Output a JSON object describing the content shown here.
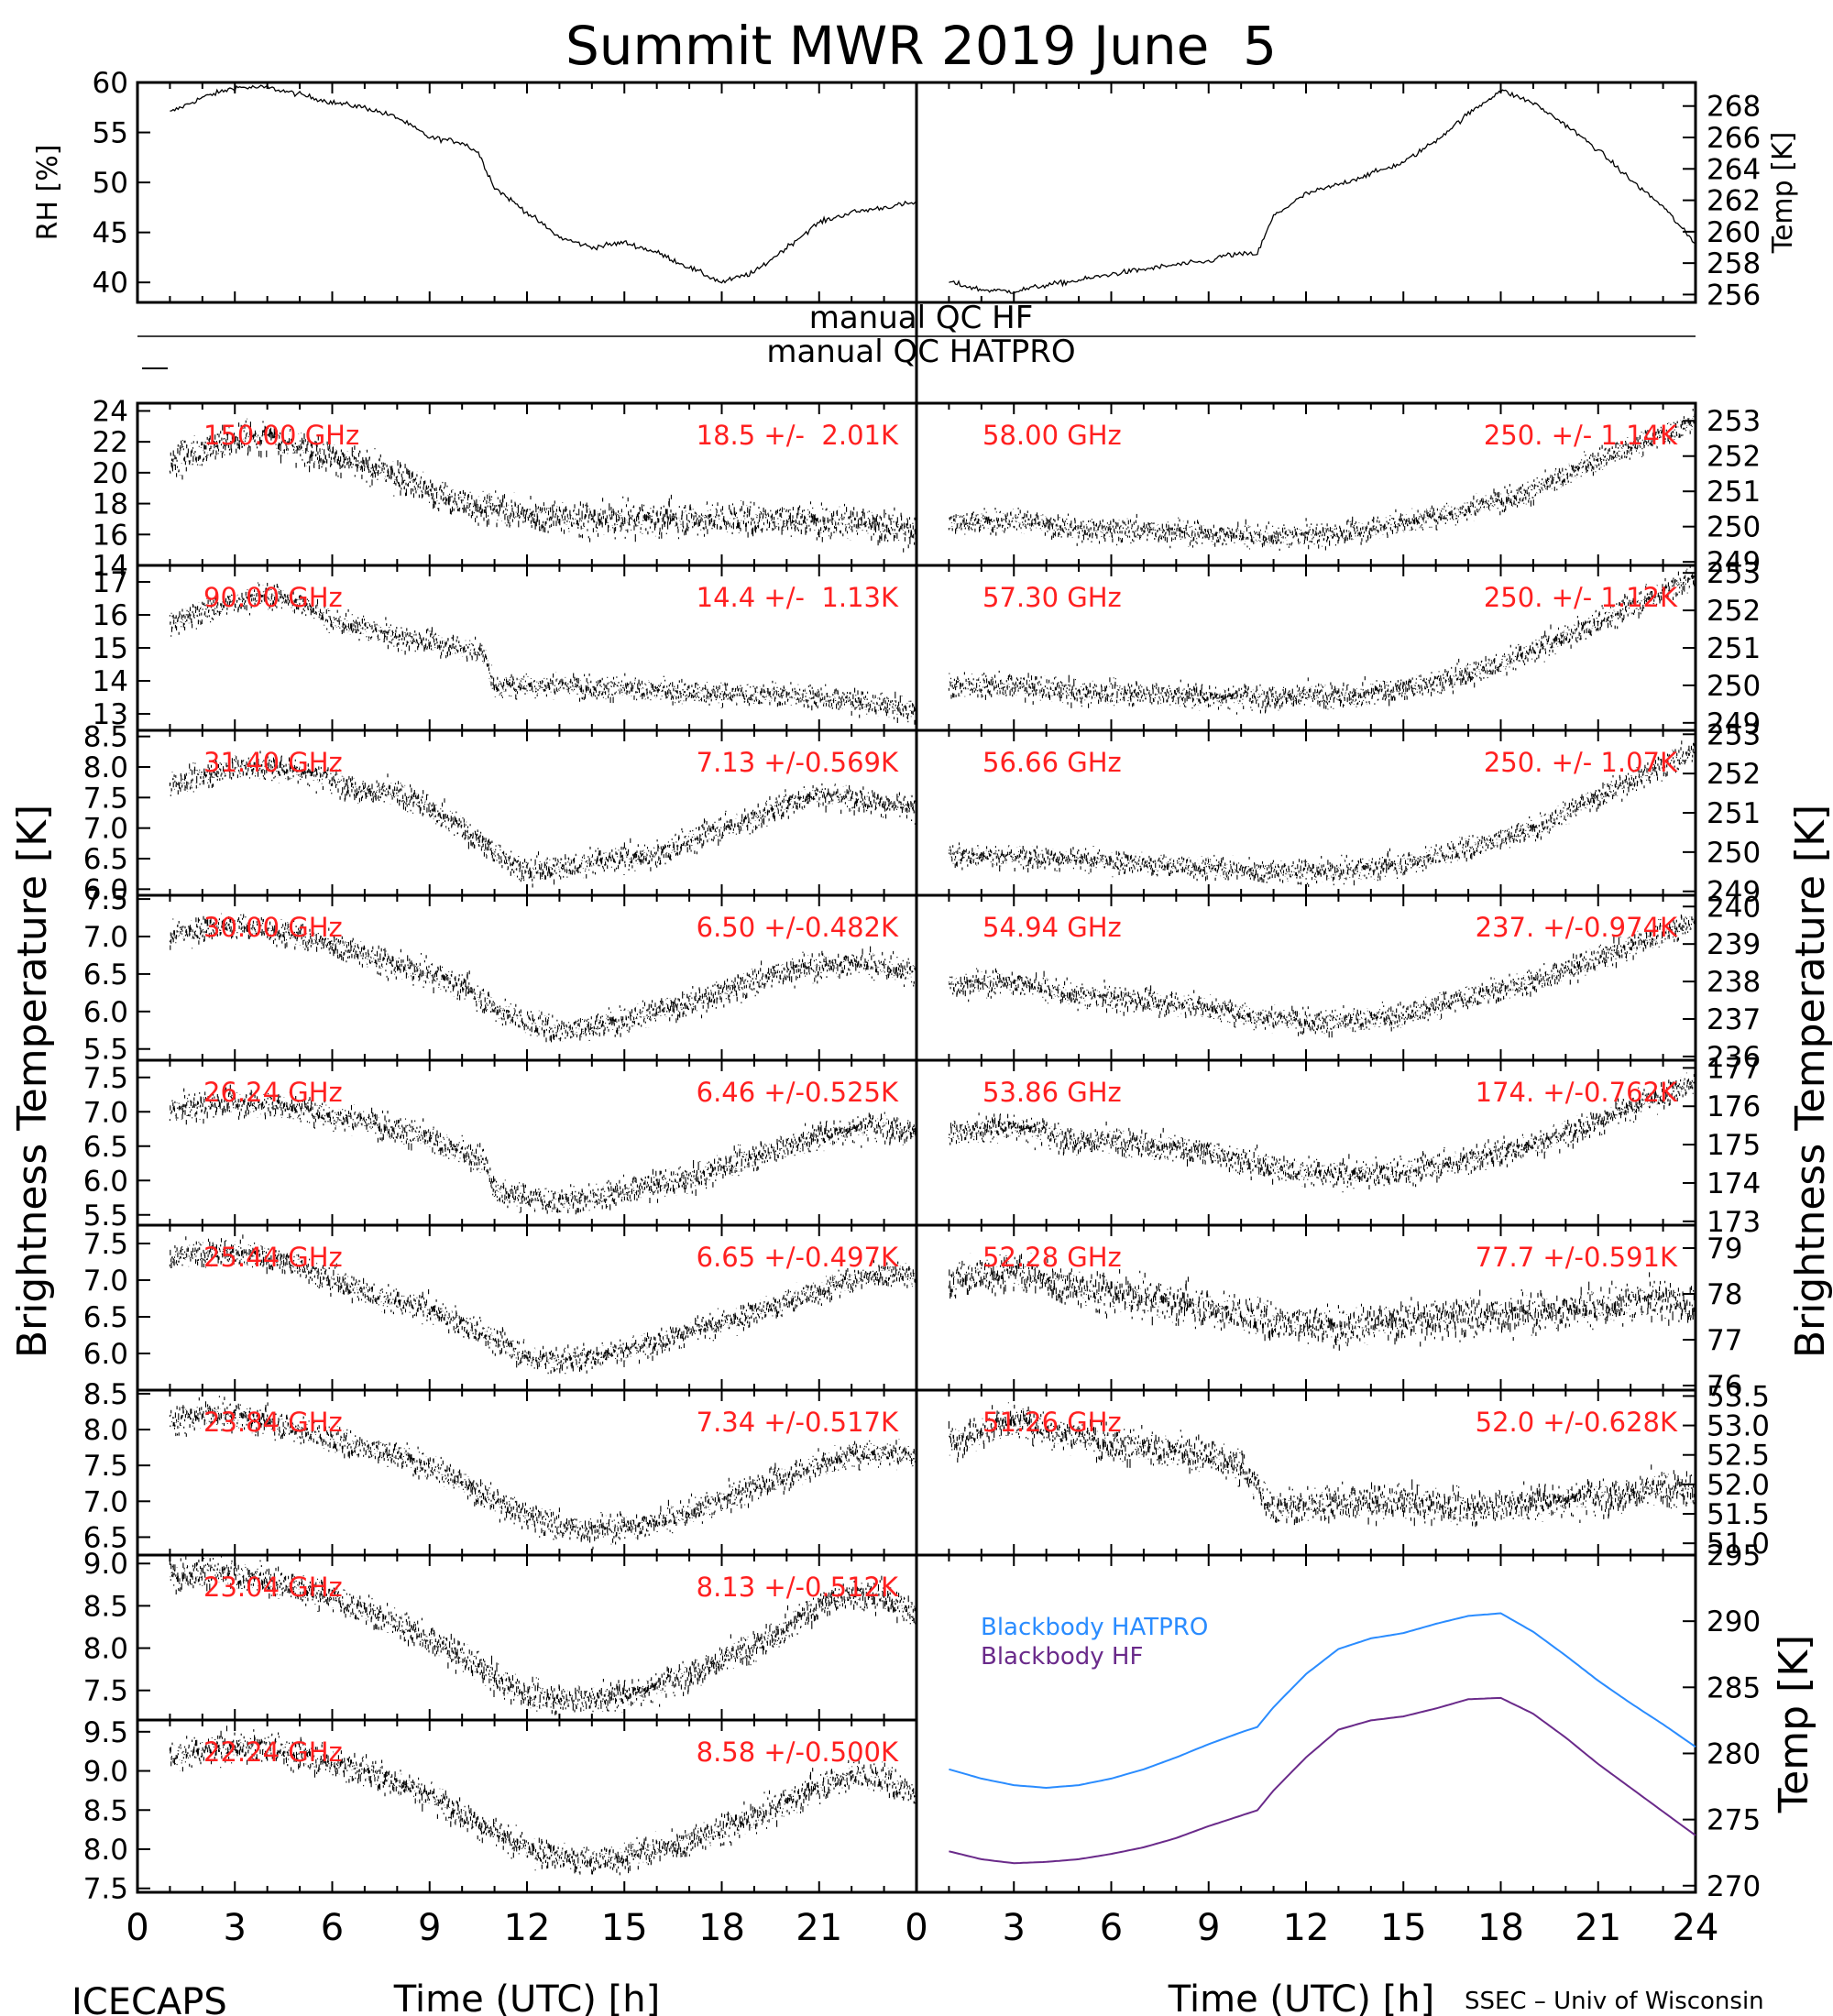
{
  "figure": {
    "title": "Summit MWR 2019 June  5",
    "footer_left": "ICECAPS",
    "footer_right": "SSEC – Univ of Wisconsin",
    "xlabel_left": "Time (UTC) [h]",
    "xlabel_right": "Time (UTC) [h]",
    "ylabel_left": "Brightness Temperature [K]",
    "ylabel_right": "Brightness Temperature [K]",
    "qc_label_hf": "manual QC HF",
    "qc_label_hatpro": "manual QC HATPRO",
    "colors": {
      "trace": "#000000",
      "annotation": "#ff2020",
      "hatpro": "#2a8cff",
      "hf": "#6a2a8a"
    }
  },
  "chart_data": [
    {
      "id": "rh",
      "type": "line",
      "ylabel": "RH [%]",
      "ylim": [
        38,
        60
      ],
      "yticks": [
        40,
        45,
        50,
        55,
        60
      ],
      "x": [
        1,
        2,
        3,
        4,
        5,
        6,
        7,
        8,
        9,
        10,
        10.5,
        11,
        12,
        13,
        14,
        15,
        16,
        17,
        18,
        19,
        20,
        21,
        22,
        23,
        24
      ],
      "y": [
        57,
        58.5,
        59.5,
        59.5,
        58.8,
        58,
        57.5,
        56.5,
        54.5,
        54,
        53,
        49.5,
        47,
        44.5,
        43.5,
        44,
        43,
        41.5,
        40,
        41,
        43.5,
        46,
        47,
        47.5,
        48
      ]
    },
    {
      "id": "temp",
      "type": "line",
      "ylabel": "Temp [K]",
      "ylim": [
        255.5,
        269.5
      ],
      "yticks": [
        256,
        258,
        260,
        262,
        264,
        266,
        268
      ],
      "x": [
        1,
        2,
        3,
        4,
        5,
        6,
        7,
        8,
        9,
        9.5,
        10.5,
        11,
        12,
        13,
        14,
        15,
        16,
        17,
        18,
        19,
        20,
        21,
        22,
        23,
        24
      ],
      "y": [
        256.8,
        256.3,
        256.2,
        256.6,
        256.9,
        257.3,
        257.6,
        257.9,
        258.1,
        258.5,
        258.6,
        261,
        262.4,
        263,
        263.7,
        264.4,
        265.8,
        267.5,
        269,
        268.2,
        266.8,
        265.2,
        263.3,
        261.6,
        259.2
      ]
    },
    {
      "id": "tb_150",
      "type": "line",
      "ylim": [
        14,
        24.5
      ],
      "yticks": [
        14,
        16,
        18,
        20,
        22,
        24
      ],
      "label": "150.00 GHz",
      "stat": "18.5 +/-  2.01K",
      "noise": 0.9,
      "x": [
        1,
        3,
        4,
        6,
        8,
        9,
        10,
        12,
        14,
        16,
        18,
        20,
        22,
        24
      ],
      "y": [
        20.8,
        22.2,
        22.3,
        21,
        19.8,
        18.8,
        18,
        17.3,
        16.9,
        17,
        17,
        17,
        16.8,
        16.2
      ]
    },
    {
      "id": "tb_90",
      "type": "line",
      "ylim": [
        12.5,
        17.5
      ],
      "yticks": [
        13,
        14,
        15,
        16,
        17
      ],
      "label": "90.00 GHz",
      "stat": "14.4 +/-  1.13K",
      "noise": 0.3,
      "x": [
        1,
        2,
        3,
        4,
        5,
        6,
        7,
        8,
        9,
        10,
        10.7,
        11,
        12,
        14,
        16,
        18,
        20,
        22,
        24
      ],
      "y": [
        15.7,
        16.1,
        16.4,
        16.6,
        16.4,
        15.8,
        15.6,
        15.3,
        15.2,
        15,
        14.8,
        13.8,
        13.9,
        13.8,
        13.7,
        13.6,
        13.6,
        13.4,
        13.1
      ]
    },
    {
      "id": "tb_31",
      "type": "line",
      "ylim": [
        5.9,
        8.6
      ],
      "yticks": [
        6.0,
        6.5,
        7.0,
        7.5,
        8.0,
        8.5
      ],
      "label": "31.40 GHz",
      "stat": "7.13 +/-0.569K",
      "noise": 0.18,
      "x": [
        1,
        2,
        3,
        4,
        5,
        6,
        7,
        8,
        9,
        10,
        11,
        12,
        13,
        14,
        15,
        16,
        17,
        18,
        19,
        20,
        21,
        22,
        23,
        24
      ],
      "y": [
        7.7,
        7.85,
        8,
        8.0,
        7.95,
        7.8,
        7.6,
        7.55,
        7.35,
        7.0,
        6.6,
        6.3,
        6.35,
        6.45,
        6.5,
        6.55,
        6.8,
        7.0,
        7.15,
        7.4,
        7.55,
        7.5,
        7.4,
        7.3
      ]
    },
    {
      "id": "tb_30",
      "type": "line",
      "ylim": [
        5.35,
        7.55
      ],
      "yticks": [
        5.5,
        6.0,
        6.5,
        7.0,
        7.5
      ],
      "label": "30.00 GHz",
      "stat": "6.50 +/-0.482K",
      "noise": 0.15,
      "x": [
        1,
        2,
        3,
        4,
        5,
        6,
        7,
        8,
        9,
        10,
        11,
        12,
        13,
        14,
        15,
        16,
        17,
        18,
        19,
        20,
        21,
        22,
        23,
        24
      ],
      "y": [
        7.0,
        7.1,
        7.15,
        7.1,
        7.0,
        6.9,
        6.75,
        6.6,
        6.5,
        6.35,
        6.05,
        5.85,
        5.75,
        5.8,
        5.9,
        6.0,
        6.1,
        6.25,
        6.4,
        6.55,
        6.6,
        6.65,
        6.6,
        6.5
      ]
    },
    {
      "id": "tb_26",
      "type": "line",
      "ylim": [
        5.35,
        7.75
      ],
      "yticks": [
        5.5,
        6.0,
        6.5,
        7.0,
        7.5
      ],
      "label": "26.24 GHz",
      "stat": "6.46 +/-0.525K",
      "noise": 0.17,
      "x": [
        1,
        2,
        3,
        4,
        5,
        6,
        7,
        8,
        9,
        10,
        10.7,
        11,
        12,
        13,
        14,
        15,
        16,
        17,
        18,
        19,
        20,
        21,
        22,
        23,
        24
      ],
      "y": [
        7.0,
        7.1,
        7.15,
        7.1,
        7.05,
        6.95,
        6.85,
        6.75,
        6.6,
        6.4,
        6.3,
        5.85,
        5.75,
        5.7,
        5.75,
        5.85,
        5.95,
        6.0,
        6.2,
        6.35,
        6.5,
        6.65,
        6.75,
        6.8,
        6.7
      ]
    },
    {
      "id": "tb_25",
      "type": "line",
      "ylim": [
        5.5,
        7.75
      ],
      "yticks": [
        6.0,
        6.5,
        7.0,
        7.5
      ],
      "label": "25.44 GHz",
      "stat": "6.65 +/-0.497K",
      "noise": 0.15,
      "x": [
        1,
        2,
        3,
        4,
        5,
        6,
        7,
        8,
        9,
        10,
        11,
        12,
        13,
        14,
        15,
        16,
        17,
        18,
        19,
        20,
        21,
        22,
        23,
        24
      ],
      "y": [
        7.3,
        7.35,
        7.4,
        7.3,
        7.2,
        7.0,
        6.85,
        6.7,
        6.6,
        6.4,
        6.2,
        5.95,
        5.9,
        5.95,
        6.05,
        6.15,
        6.3,
        6.4,
        6.55,
        6.7,
        6.85,
        7.0,
        7.1,
        7.05
      ]
    },
    {
      "id": "tb_23_8",
      "type": "line",
      "ylim": [
        6.25,
        8.55
      ],
      "yticks": [
        6.5,
        7.0,
        7.5,
        8.0,
        8.5
      ],
      "label": "23.84 GHz",
      "stat": "7.34 +/-0.517K",
      "noise": 0.16,
      "x": [
        1,
        2,
        3,
        4,
        5,
        6,
        7,
        8,
        9,
        10,
        11,
        12,
        13,
        14,
        15,
        16,
        17,
        18,
        19,
        20,
        21,
        22,
        23,
        24
      ],
      "y": [
        8.1,
        8.2,
        8.2,
        8.1,
        8.0,
        7.85,
        7.75,
        7.65,
        7.5,
        7.25,
        7.0,
        6.8,
        6.65,
        6.6,
        6.65,
        6.7,
        6.85,
        7.0,
        7.2,
        7.35,
        7.5,
        7.65,
        7.7,
        7.6
      ]
    },
    {
      "id": "tb_23_0",
      "type": "line",
      "ylim": [
        7.15,
        9.1
      ],
      "yticks": [
        7.5,
        8.0,
        8.5,
        9.0
      ],
      "label": "23.04 GHz",
      "stat": "8.13 +/-0.512K",
      "noise": 0.15,
      "x": [
        1,
        2,
        3,
        4,
        5,
        6,
        7,
        8,
        9,
        10,
        11,
        12,
        13,
        14,
        15,
        16,
        17,
        18,
        19,
        20,
        21,
        22,
        23,
        24
      ],
      "y": [
        8.85,
        8.9,
        8.85,
        8.8,
        8.7,
        8.6,
        8.45,
        8.3,
        8.1,
        7.9,
        7.65,
        7.45,
        7.4,
        7.4,
        7.45,
        7.55,
        7.7,
        7.85,
        8.0,
        8.25,
        8.5,
        8.65,
        8.6,
        8.4
      ]
    },
    {
      "id": "tb_22",
      "type": "line",
      "ylim": [
        7.45,
        9.65
      ],
      "yticks": [
        7.5,
        8.0,
        8.5,
        9.0,
        9.5
      ],
      "label": "22.24 GHz",
      "stat": "8.58 +/-0.500K",
      "noise": 0.16,
      "x": [
        1,
        2,
        3,
        4,
        5,
        6,
        7,
        8,
        9,
        10,
        11,
        12,
        13,
        14,
        15,
        16,
        17,
        18,
        19,
        20,
        21,
        22,
        23,
        24
      ],
      "y": [
        9.2,
        9.25,
        9.3,
        9.3,
        9.2,
        9.1,
        9.0,
        8.85,
        8.7,
        8.45,
        8.2,
        8.0,
        7.9,
        7.85,
        7.9,
        8.0,
        8.1,
        8.25,
        8.4,
        8.6,
        8.8,
        8.95,
        8.9,
        8.7
      ]
    },
    {
      "id": "tb_58",
      "type": "line",
      "ylim": [
        248.9,
        253.5
      ],
      "yticks": [
        249,
        250,
        251,
        252,
        253
      ],
      "label": "58.00 GHz",
      "stat": "250. +/- 1.14K",
      "noise": 0.28,
      "x": [
        1,
        3,
        5,
        7,
        9,
        11,
        13,
        15,
        17,
        19,
        21,
        23,
        24
      ],
      "y": [
        250.1,
        250.2,
        249.9,
        249.9,
        249.8,
        249.7,
        249.8,
        250.1,
        250.5,
        251.0,
        251.9,
        252.6,
        253.0
      ]
    },
    {
      "id": "tb_57_3",
      "type": "line",
      "ylim": [
        248.8,
        253.2
      ],
      "yticks": [
        249,
        250,
        251,
        252,
        253
      ],
      "label": "57.30 GHz",
      "stat": "250. +/- 1.12K",
      "noise": 0.28,
      "x": [
        1,
        3,
        5,
        7,
        9,
        11,
        13,
        15,
        17,
        19,
        21,
        23,
        24
      ],
      "y": [
        250.0,
        250.0,
        249.8,
        249.8,
        249.7,
        249.7,
        249.7,
        249.9,
        250.3,
        250.9,
        251.7,
        252.5,
        252.9
      ]
    },
    {
      "id": "tb_56_7",
      "type": "line",
      "ylim": [
        248.9,
        253.1
      ],
      "yticks": [
        249,
        250,
        251,
        252,
        253
      ],
      "label": "56.66 GHz",
      "stat": "250. +/- 1.07K",
      "noise": 0.25,
      "x": [
        1,
        3,
        5,
        7,
        9,
        11,
        13,
        15,
        17,
        19,
        21,
        23,
        24
      ],
      "y": [
        249.9,
        249.9,
        249.8,
        249.7,
        249.6,
        249.5,
        249.5,
        249.7,
        250.1,
        250.6,
        251.4,
        252.2,
        252.6
      ]
    },
    {
      "id": "tb_54_9",
      "type": "line",
      "ylim": [
        235.9,
        240.3
      ],
      "yticks": [
        236,
        237,
        238,
        239,
        240
      ],
      "label": "54.94 GHz",
      "stat": "237. +/-0.974K",
      "noise": 0.28,
      "x": [
        1,
        3,
        5,
        7,
        9,
        11,
        13,
        15,
        17,
        19,
        21,
        23,
        24
      ],
      "y": [
        237.9,
        238.0,
        237.6,
        237.5,
        237.3,
        237.0,
        236.9,
        237.1,
        237.6,
        238.0,
        238.6,
        239.3,
        239.6
      ]
    },
    {
      "id": "tb_53_9",
      "type": "line",
      "ylim": [
        172.9,
        177.2
      ],
      "yticks": [
        173,
        174,
        175,
        176,
        177
      ],
      "label": "53.86 GHz",
      "stat": "174. +/-0.762K",
      "noise": 0.3,
      "x": [
        1,
        3,
        5,
        7,
        9,
        11,
        13,
        15,
        17,
        19,
        21,
        23,
        24
      ],
      "y": [
        175.3,
        175.5,
        175.1,
        175.0,
        174.8,
        174.4,
        174.2,
        174.3,
        174.6,
        175.0,
        175.6,
        176.3,
        176.6
      ]
    },
    {
      "id": "tb_52_3",
      "type": "line",
      "ylim": [
        75.9,
        79.5
      ],
      "yticks": [
        76,
        77,
        78,
        79
      ],
      "label": "52.28 GHz",
      "stat": "77.7 +/-0.591K",
      "noise": 0.35,
      "x": [
        1,
        3,
        5,
        7,
        9,
        11,
        13,
        15,
        17,
        19,
        21,
        23,
        24
      ],
      "y": [
        78.3,
        78.5,
        78.1,
        77.9,
        77.7,
        77.4,
        77.3,
        77.4,
        77.5,
        77.6,
        77.7,
        77.9,
        77.7
      ]
    },
    {
      "id": "tb_51_3",
      "type": "line",
      "ylim": [
        50.8,
        53.6
      ],
      "yticks": [
        51.0,
        51.5,
        52.0,
        52.5,
        53.0,
        53.5
      ],
      "label": "51.26 GHz",
      "stat": "52.0 +/-0.628K",
      "noise": 0.25,
      "x": [
        1,
        3,
        5,
        7,
        9,
        10,
        11,
        13,
        15,
        17,
        19,
        21,
        23,
        24
      ],
      "y": [
        52.7,
        53.1,
        52.8,
        52.6,
        52.5,
        52.3,
        51.6,
        51.7,
        51.7,
        51.6,
        51.7,
        51.8,
        51.9,
        51.9
      ]
    },
    {
      "id": "blackbody",
      "type": "line",
      "ylabel": "Temp [K]",
      "ylim": [
        269.5,
        295
      ],
      "yticks": [
        270,
        275,
        280,
        285,
        290,
        295
      ],
      "series": [
        {
          "name": "Blackbody HATPRO",
          "color": "#2a8cff",
          "x": [
            1,
            2,
            3,
            4,
            5,
            6,
            7,
            8,
            9,
            10,
            10.5,
            11,
            12,
            13,
            14,
            15,
            16,
            17,
            18,
            19,
            20,
            21,
            22,
            23,
            24
          ],
          "y": [
            278.8,
            278.1,
            277.6,
            277.4,
            277.6,
            278.1,
            278.8,
            279.7,
            280.7,
            281.6,
            282,
            283.5,
            286,
            287.9,
            288.7,
            289.1,
            289.8,
            290.4,
            290.6,
            289.2,
            287.4,
            285.5,
            283.8,
            282.2,
            280.5
          ]
        },
        {
          "name": "Blackbody HF",
          "color": "#6a2a8a",
          "x": [
            1,
            2,
            3,
            4,
            5,
            6,
            7,
            8,
            9,
            10,
            10.5,
            11,
            12,
            13,
            14,
            15,
            16,
            17,
            18,
            19,
            20,
            21,
            22,
            23,
            24
          ],
          "y": [
            272.6,
            272.0,
            271.7,
            271.8,
            272.0,
            272.4,
            272.9,
            273.6,
            274.5,
            275.3,
            275.7,
            277.2,
            279.7,
            281.8,
            282.5,
            282.8,
            283.4,
            284.1,
            284.2,
            283.0,
            281.2,
            279.2,
            277.4,
            275.6,
            273.8
          ]
        }
      ]
    }
  ]
}
